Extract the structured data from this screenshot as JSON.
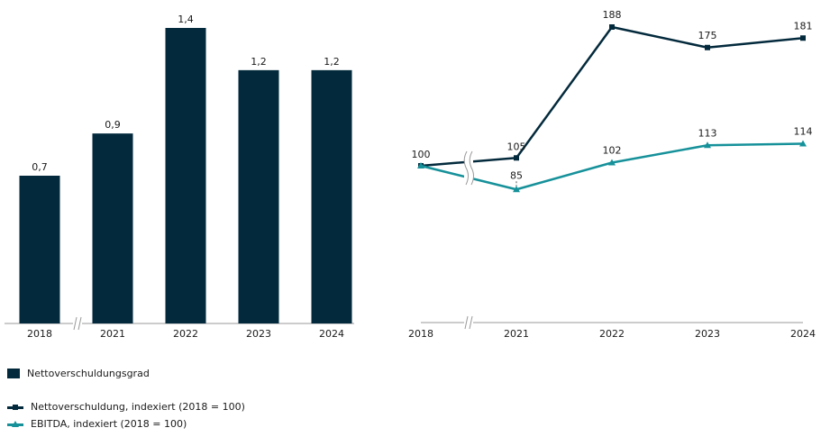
{
  "colors": {
    "navy": "#032a3c",
    "teal": "#16919a",
    "axis": "#999999"
  },
  "chart_data": [
    {
      "type": "bar",
      "categories": [
        "2018",
        "2021",
        "2022",
        "2023",
        "2024"
      ],
      "values": [
        0.7,
        0.9,
        1.4,
        1.2,
        1.2
      ],
      "value_labels": [
        "0,7",
        "0,9",
        "1,4",
        "1,2",
        "1,2"
      ],
      "series": [
        {
          "name": "Nettoverschuldungsgrad",
          "values": [
            0.7,
            0.9,
            1.4,
            1.2,
            1.2
          ]
        }
      ],
      "ylim": [
        0,
        1.4
      ],
      "axis_break_after": "2018"
    },
    {
      "type": "line",
      "x": [
        "2018",
        "2021",
        "2022",
        "2023",
        "2024"
      ],
      "series": [
        {
          "name": "Nettoverschuldung, indexiert (2018 = 100)",
          "values": [
            100,
            105,
            188,
            175,
            181
          ],
          "marker": "square",
          "color": "#032a3c"
        },
        {
          "name": "EBITDA, indexiert (2018 = 100)",
          "values": [
            100,
            85,
            102,
            113,
            114
          ],
          "marker": "triangle",
          "color": "#16919a"
        }
      ],
      "value_labels": [
        [
          "100",
          "105",
          "188",
          "175",
          "181"
        ],
        [
          "",
          "85",
          "102",
          "113",
          "114"
        ]
      ],
      "axis_break_after": "2018"
    }
  ],
  "legend": {
    "bar_label": "Nettoverschuldungsgrad",
    "line1_label": "Nettoverschuldung, indexiert (2018 = 100)",
    "line2_label": "EBITDA, indexiert (2018 = 100)"
  }
}
